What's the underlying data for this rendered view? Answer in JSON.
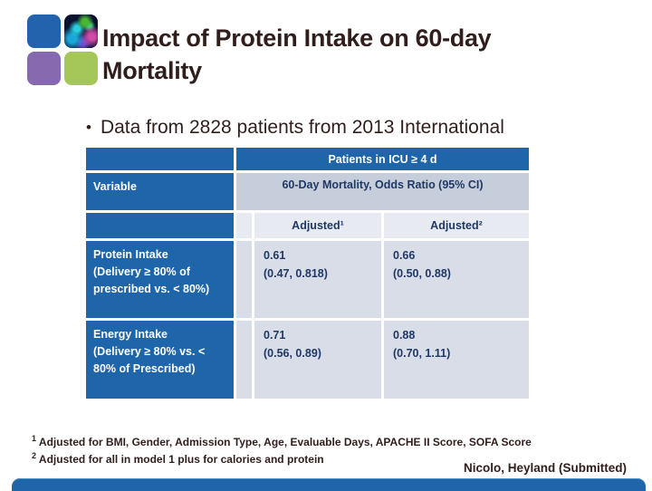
{
  "slide": {
    "title": "Impact of Protein Intake on 60-day Mortality",
    "bullet_glyph": "•",
    "bullet": "Data from 2828 patients from 2013 International",
    "attribution": "Nicolo, Heyland (Submitted)",
    "footnotes": [
      {
        "marker": "1",
        "text": "Adjusted for BMI, Gender, Admission Type, Age, Evaluable Days, APACHE II Score, SOFA Score"
      },
      {
        "marker": "2",
        "text": "Adjusted for all in model 1 plus for calories and protein"
      }
    ]
  },
  "logo": {
    "tiles": [
      "blue-square",
      "photo-square",
      "purple-square",
      "green-square"
    ]
  },
  "table": {
    "span_header": "Patients in ICU ≥ 4 d",
    "variable_header": "Variable",
    "measure_header": "60-Day Mortality, Odds Ratio (95% CI)",
    "col_headers": [
      "Adjusted¹",
      "Adjusted²"
    ],
    "rows": [
      {
        "name": "Protein Intake",
        "detail": "(Delivery ≥ 80% of prescribed vs. < 80%)",
        "adjusted1_or": "0.61",
        "adjusted1_ci": "(0.47, 0.818)",
        "adjusted2_or": "0.66",
        "adjusted2_ci": "(0.50, 0.88)"
      },
      {
        "name": "Energy Intake",
        "detail": "(Delivery ≥ 80% vs. < 80% of Prescribed)",
        "adjusted1_or": "0.71",
        "adjusted1_ci": "(0.56, 0.89)",
        "adjusted2_or": "0.88",
        "adjusted2_ci": "(0.70, 1.11)"
      }
    ]
  },
  "colors": {
    "header_blue": "#1e65a9",
    "table_text_navy": "#1f3864",
    "band_measure": "#c6cedc",
    "band_adjusted": "#e8eaf1",
    "band_data": "#d9dde8",
    "title_ink": "#301e1c",
    "logo_blue": "#2363ae",
    "logo_purple": "#8669ae",
    "logo_green": "#a5c75a",
    "bottom_bar_blue": "#1e65a9"
  }
}
